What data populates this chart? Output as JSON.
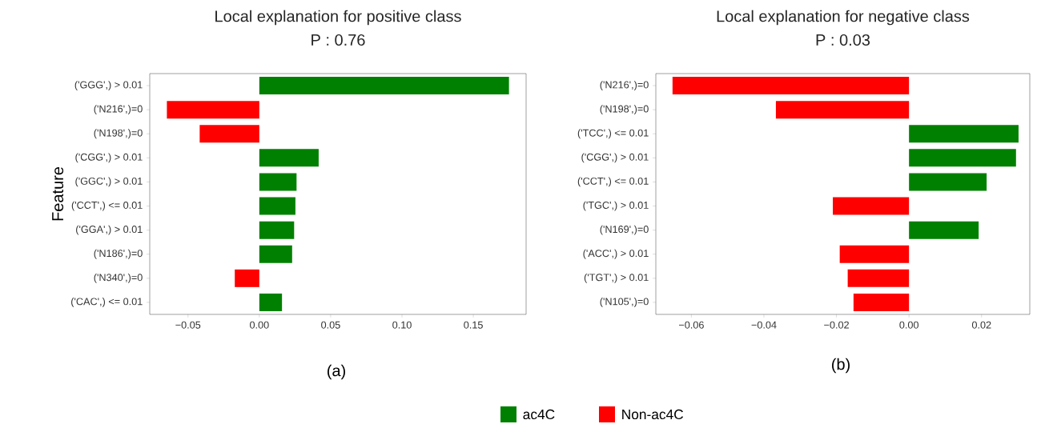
{
  "chart_data": [
    {
      "type": "bar",
      "orientation": "horizontal",
      "title": "Local explanation for positive class",
      "subtitle": "P : 0.76",
      "ylabel": "Feature",
      "categories": [
        "('GGG',) > 0.01",
        "('N216',)=0",
        "('N198',)=0",
        "('CGG',) > 0.01",
        "('GGC',) > 0.01",
        "('CCT',) <= 0.01",
        "('GGA',) > 0.01",
        "('N186',)=0",
        "('N340',)=0",
        "('CAC',) <= 0.01"
      ],
      "series": [
        {
          "name": "ac4C",
          "color": "#008000",
          "values": [
            0.175,
            null,
            null,
            0.0416,
            0.0261,
            0.0253,
            0.0244,
            0.023,
            null,
            0.0159
          ]
        },
        {
          "name": "Non-ac4C",
          "color": "#ff0000",
          "values": [
            null,
            -0.0648,
            -0.0418,
            null,
            null,
            null,
            null,
            null,
            -0.0172,
            null
          ]
        }
      ],
      "xlim": [
        -0.0768,
        0.187
      ],
      "xticks": [
        {
          "value": -0.05,
          "label": "−0.05"
        },
        {
          "value": 0,
          "label": "0.00"
        },
        {
          "value": 0.05,
          "label": "0.05"
        },
        {
          "value": 0.1,
          "label": "0.10"
        },
        {
          "value": 0.15,
          "label": "0.15"
        }
      ],
      "annotations": [
        "(a)"
      ],
      "legend": "bottom"
    },
    {
      "type": "bar",
      "orientation": "horizontal",
      "title": "Local explanation for negative class",
      "subtitle": "P : 0.03",
      "categories": [
        "('N216',)=0",
        "('N198',)=0",
        "('TCC',) <= 0.01",
        "('CGG',) > 0.01",
        "('CCT',) <= 0.01",
        "('TGC',) > 0.01",
        "('N169',)=0",
        "('ACC',) > 0.01",
        "('TGT',) > 0.01",
        "('N105',)=0"
      ],
      "series": [
        {
          "color": "#008000",
          "values": [
            null,
            null,
            0.0302,
            0.0295,
            0.0214,
            null,
            0.0192,
            null,
            null,
            null
          ]
        },
        {
          "color": "#ff0000",
          "values": [
            -0.0652,
            -0.0367,
            null,
            null,
            null,
            -0.021,
            null,
            -0.0191,
            -0.0169,
            -0.0153
          ]
        }
      ],
      "xlim": [
        -0.0698,
        0.0333
      ],
      "xticks": [
        {
          "value": -0.06,
          "label": "−0.06"
        },
        {
          "value": -0.04,
          "label": "−0.04"
        },
        {
          "value": -0.02,
          "label": "−0.02"
        },
        {
          "value": 0,
          "label": "0.00"
        },
        {
          "value": 0.02,
          "label": "0.02"
        }
      ],
      "annotations": [
        "(b)"
      ]
    }
  ]
}
